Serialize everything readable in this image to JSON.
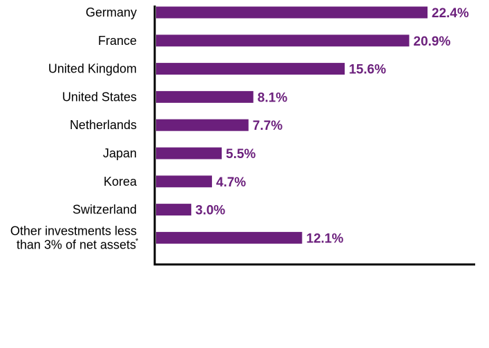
{
  "chart_data": {
    "type": "bar",
    "orientation": "horizontal",
    "categories": [
      "Germany",
      "France",
      "United Kingdom",
      "United States",
      "Netherlands",
      "Japan",
      "Korea",
      "Switzerland",
      "Other investments less than 3% of net assets"
    ],
    "category_lines": [
      [
        "Germany"
      ],
      [
        "France"
      ],
      [
        "United Kingdom"
      ],
      [
        "United States"
      ],
      [
        "Netherlands"
      ],
      [
        "Japan"
      ],
      [
        "Korea"
      ],
      [
        "Switzerland"
      ],
      [
        "Other investments less",
        "than 3% of net assets"
      ]
    ],
    "footnote_markers": [
      "",
      "",
      "",
      "",
      "",
      "",
      "",
      "",
      "*"
    ],
    "values": [
      22.4,
      20.9,
      15.6,
      8.1,
      7.7,
      5.5,
      4.7,
      3.0,
      12.1
    ],
    "value_labels": [
      "22.4%",
      "20.9%",
      "15.6%",
      "8.1%",
      "7.7%",
      "5.5%",
      "4.7%",
      "3.0%",
      "12.1%"
    ],
    "title": "",
    "xlabel": "",
    "ylabel": "",
    "xlim": [
      0,
      26.4
    ],
    "grid": false,
    "legend": "none",
    "colors": {
      "bar": "#6b1f7c",
      "value_label": "#6b1f7c",
      "axis": "#000000"
    }
  }
}
